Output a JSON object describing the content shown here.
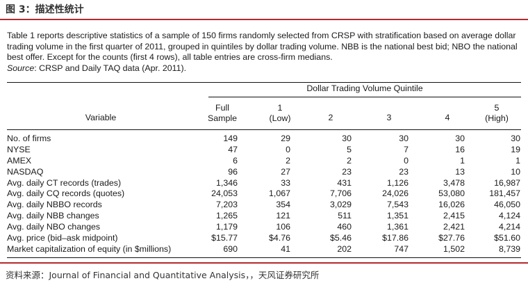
{
  "figure": {
    "title": "图 3：描述性统计",
    "colors": {
      "accent_rule": "#b7282e"
    }
  },
  "caption": {
    "text": "Table 1 reports descriptive statistics of a sample of 150 firms randomly selected from CRSP with stratification based on average dollar trading volume in the first quarter of 2011, grouped in quintiles by dollar trading volume. NBB is the national best bid; NBO the national best offer. Except for the counts (first 4 rows), all table entries are cross-firm medians.",
    "source_label": "Source",
    "source_text": ": CRSP and Daily TAQ data (Apr. 2011)."
  },
  "table": {
    "group_header": "Dollar Trading Volume Quintile",
    "variable_header": "Variable",
    "columns": [
      {
        "line1": "Full",
        "line2": "Sample"
      },
      {
        "line1": "1",
        "line2": "(Low)"
      },
      {
        "line1": "",
        "line2": "2"
      },
      {
        "line1": "",
        "line2": "3"
      },
      {
        "line1": "",
        "line2": "4"
      },
      {
        "line1": "5",
        "line2": "(High)"
      }
    ],
    "rows": [
      {
        "label": "No. of firms",
        "values": [
          "149",
          "29",
          "30",
          "30",
          "30",
          "30"
        ]
      },
      {
        "label": "NYSE",
        "values": [
          "47",
          "0",
          "5",
          "7",
          "16",
          "19"
        ]
      },
      {
        "label": "AMEX",
        "values": [
          "6",
          "2",
          "2",
          "0",
          "1",
          "1"
        ]
      },
      {
        "label": "NASDAQ",
        "values": [
          "96",
          "27",
          "23",
          "23",
          "13",
          "10"
        ]
      },
      {
        "label": "Avg. daily CT records (trades)",
        "values": [
          "1,346",
          "33",
          "431",
          "1,126",
          "3,478",
          "16,987"
        ]
      },
      {
        "label": "Avg. daily CQ records (quotes)",
        "values": [
          "24,053",
          "1,067",
          "7,706",
          "24,026",
          "53,080",
          "181,457"
        ]
      },
      {
        "label": "Avg. daily NBBO records",
        "values": [
          "7,203",
          "354",
          "3,029",
          "7,543",
          "16,026",
          "46,050"
        ]
      },
      {
        "label": "Avg. daily NBB changes",
        "values": [
          "1,265",
          "121",
          "511",
          "1,351",
          "2,415",
          "4,124"
        ]
      },
      {
        "label": "Avg. daily NBO changes",
        "values": [
          "1,179",
          "106",
          "460",
          "1,361",
          "2,421",
          "4,214"
        ]
      },
      {
        "label": "Avg. price (bid–ask midpoint)",
        "values": [
          "$15.77",
          "$4.76",
          "$5.46",
          "$17.86",
          "$27.76",
          "$51.60"
        ]
      },
      {
        "label": "Market capitalization of equity (in $millions)",
        "values": [
          "690",
          "41",
          "202",
          "747",
          "1,502",
          "8,739"
        ]
      }
    ]
  },
  "footer": {
    "text": "资料来源：Journal of Financial and Quantitative Analysis，，天风证券研究所"
  }
}
